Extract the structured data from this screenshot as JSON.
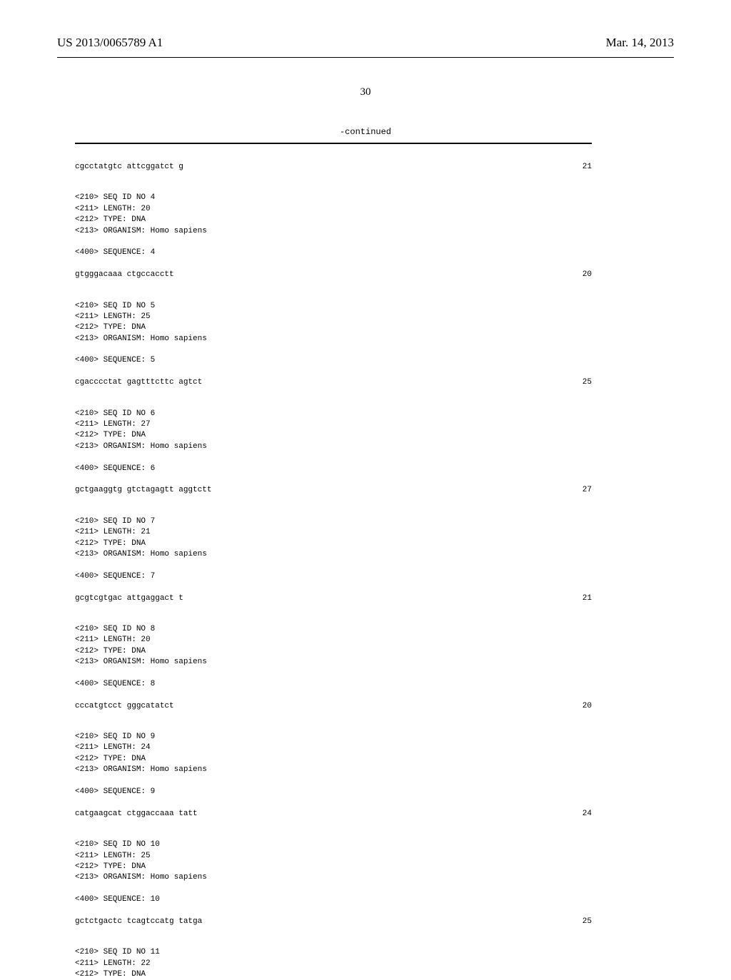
{
  "header": {
    "patent_number": "US 2013/0065789 A1",
    "date": "Mar. 14, 2013"
  },
  "page_number": "30",
  "continued_label": "-continued",
  "sequences": [
    {
      "has_meta": false,
      "sequence": "cgcctatgtc attcggatct g",
      "length": "21"
    },
    {
      "has_meta": true,
      "meta": [
        "<210> SEQ ID NO 4",
        "<211> LENGTH: 20",
        "<212> TYPE: DNA",
        "<213> ORGANISM: Homo sapiens"
      ],
      "sequence_label": "<400> SEQUENCE: 4",
      "sequence": "gtgggacaaa ctgccacctt",
      "length": "20"
    },
    {
      "has_meta": true,
      "meta": [
        "<210> SEQ ID NO 5",
        "<211> LENGTH: 25",
        "<212> TYPE: DNA",
        "<213> ORGANISM: Homo sapiens"
      ],
      "sequence_label": "<400> SEQUENCE: 5",
      "sequence": "cgacccctat gagtttcttc agtct",
      "length": "25"
    },
    {
      "has_meta": true,
      "meta": [
        "<210> SEQ ID NO 6",
        "<211> LENGTH: 27",
        "<212> TYPE: DNA",
        "<213> ORGANISM: Homo sapiens"
      ],
      "sequence_label": "<400> SEQUENCE: 6",
      "sequence": "gctgaaggtg gtctagagtt aggtctt",
      "length": "27"
    },
    {
      "has_meta": true,
      "meta": [
        "<210> SEQ ID NO 7",
        "<211> LENGTH: 21",
        "<212> TYPE: DNA",
        "<213> ORGANISM: Homo sapiens"
      ],
      "sequence_label": "<400> SEQUENCE: 7",
      "sequence": "gcgtcgtgac attgaggact t",
      "length": "21"
    },
    {
      "has_meta": true,
      "meta": [
        "<210> SEQ ID NO 8",
        "<211> LENGTH: 20",
        "<212> TYPE: DNA",
        "<213> ORGANISM: Homo sapiens"
      ],
      "sequence_label": "<400> SEQUENCE: 8",
      "sequence": "cccatgtcct gggcatatct",
      "length": "20"
    },
    {
      "has_meta": true,
      "meta": [
        "<210> SEQ ID NO 9",
        "<211> LENGTH: 24",
        "<212> TYPE: DNA",
        "<213> ORGANISM: Homo sapiens"
      ],
      "sequence_label": "<400> SEQUENCE: 9",
      "sequence": "catgaagcat ctggaccaaa tatt",
      "length": "24"
    },
    {
      "has_meta": true,
      "meta": [
        "<210> SEQ ID NO 10",
        "<211> LENGTH: 25",
        "<212> TYPE: DNA",
        "<213> ORGANISM: Homo sapiens"
      ],
      "sequence_label": "<400> SEQUENCE: 10",
      "sequence": "gctctgactc tcagtccatg tatga",
      "length": "25"
    },
    {
      "has_meta": true,
      "is_partial": true,
      "meta": [
        "<210> SEQ ID NO 11",
        "<211> LENGTH: 22",
        "<212> TYPE: DNA"
      ]
    }
  ]
}
